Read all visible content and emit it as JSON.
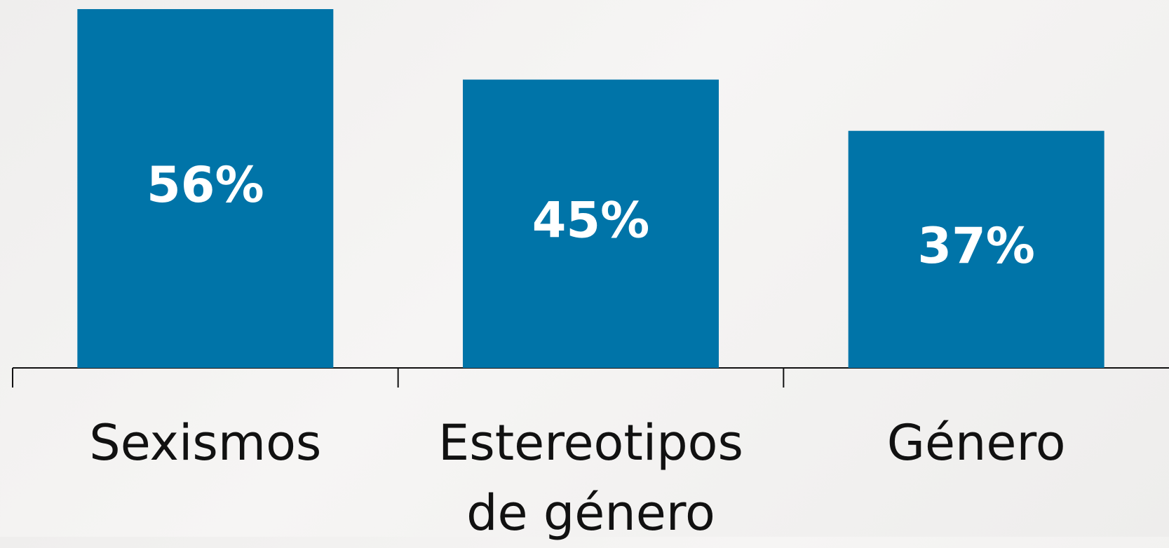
{
  "chart_data": {
    "type": "bar",
    "categories": [
      "Sexismos",
      "Estereotipos de género",
      "Género"
    ],
    "values": [
      56,
      45,
      37
    ],
    "value_labels": [
      "56%",
      "45%",
      "37%"
    ],
    "color": "#0074a8"
  }
}
